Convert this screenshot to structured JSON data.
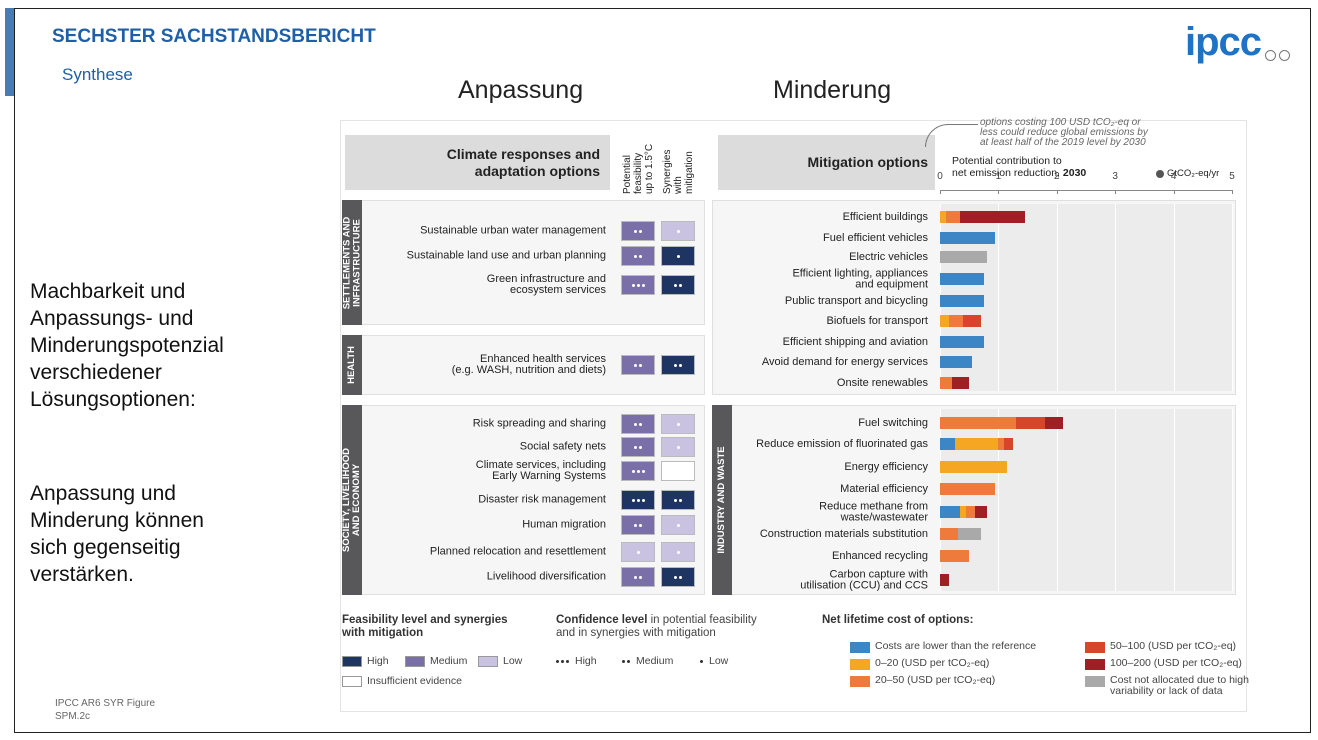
{
  "header": {
    "title": "SECHSTER SACHSTANDSBERICHT",
    "subtitle": "Synthese",
    "logo": "ipcc"
  },
  "headings": [
    "Anpassung",
    "Minderung"
  ],
  "side_text": [
    "Machbarkeit und\nAnpassungs- und\nMinderungspotenzial\nverschiedener\nLösungsoptionen:",
    "Anpassung und\nMinderung können\nsich gegenseitig\nverstärken."
  ],
  "source": "IPCC AR6 SYR Figure\nSPM.2c",
  "figure": {
    "adaptation": {
      "title": "Climate responses and\nadaptation options",
      "columns": [
        "Potential\nfeasibility\nup to 1.5°C",
        "Synergies\nwith\nmitigation"
      ],
      "sections": [
        {
          "name": "SETTLEMENTS AND\nINFRASTRUCTURE",
          "options": [
            {
              "label": "Sustainable urban water management",
              "feasibility": {
                "color": "#7b6fa8",
                "dots": 2
              },
              "synergy": {
                "color": "#c9c2e0",
                "dots": 1
              }
            },
            {
              "label": "Sustainable land use and urban planning",
              "feasibility": {
                "color": "#7b6fa8",
                "dots": 2
              },
              "synergy": {
                "color": "#1e3461",
                "dots": 1
              }
            },
            {
              "label": "Green infrastructure and\necosystem services",
              "feasibility": {
                "color": "#7b6fa8",
                "dots": 3
              },
              "synergy": {
                "color": "#1e3461",
                "dots": 2
              }
            }
          ]
        },
        {
          "name": "HEALTH",
          "options": [
            {
              "label": "Enhanced health services\n(e.g. WASH, nutrition and diets)",
              "feasibility": {
                "color": "#7b6fa8",
                "dots": 2
              },
              "synergy": {
                "color": "#1e3461",
                "dots": 2
              }
            }
          ]
        },
        {
          "name": "SOCIETY, LIVELIHOOD\nAND ECONOMY",
          "options": [
            {
              "label": "Risk spreading and sharing",
              "feasibility": {
                "color": "#7b6fa8",
                "dots": 2
              },
              "synergy": {
                "color": "#c9c2e0",
                "dots": 1
              }
            },
            {
              "label": "Social safety nets",
              "feasibility": {
                "color": "#7b6fa8",
                "dots": 2
              },
              "synergy": {
                "color": "#c9c2e0",
                "dots": 1
              }
            },
            {
              "label": "Climate services, including\nEarly Warning Systems",
              "feasibility": {
                "color": "#7b6fa8",
                "dots": 3
              },
              "synergy": {
                "color": "#ffffff",
                "dots": 0
              }
            },
            {
              "label": "Disaster risk management",
              "feasibility": {
                "color": "#1e3461",
                "dots": 3
              },
              "synergy": {
                "color": "#1e3461",
                "dots": 2
              }
            },
            {
              "label": "Human migration",
              "feasibility": {
                "color": "#7b6fa8",
                "dots": 2
              },
              "synergy": {
                "color": "#c9c2e0",
                "dots": 1
              }
            },
            {
              "label": "Planned relocation and resettlement",
              "feasibility": {
                "color": "#c9c2e0",
                "dots": 1
              },
              "synergy": {
                "color": "#c9c2e0",
                "dots": 1
              }
            },
            {
              "label": "Livelihood diversification",
              "feasibility": {
                "color": "#7b6fa8",
                "dots": 2
              },
              "synergy": {
                "color": "#1e3461",
                "dots": 2
              }
            }
          ]
        }
      ]
    },
    "mitigation": {
      "title": "Mitigation options",
      "note": "options costing 100 USD tCO₂-eq or\nless could reduce global emissions by\nat least half of the 2019 level by 2030",
      "axis_title": "Potential contribution to\nnet emission reduction, ",
      "axis_title_bold": "2030",
      "unit": "GtCO₂-eq/yr",
      "xlim": [
        0,
        5
      ],
      "xticks": [
        0,
        1,
        2,
        3,
        4,
        5
      ],
      "grid": true,
      "sectors": [
        {
          "options": [
            {
              "label": "Efficient buildings",
              "segments": [
                {
                  "color": "#f5a623",
                  "value": 0.1
                },
                {
                  "color": "#ee7a3c",
                  "value": 0.25
                },
                {
                  "color": "#a01f24",
                  "value": 1.1
                }
              ]
            },
            {
              "label": "Fuel efficient vehicles",
              "segments": [
                {
                  "color": "#3d86c6",
                  "value": 0.95
                }
              ]
            },
            {
              "label": "Electric vehicles",
              "segments": [
                {
                  "color": "#a9a9a9",
                  "value": 0.8
                }
              ]
            },
            {
              "label": "Efficient lighting, appliances\nand equipment",
              "segments": [
                {
                  "color": "#3d86c6",
                  "value": 0.75
                }
              ]
            },
            {
              "label": "Public transport and bicycling",
              "segments": [
                {
                  "color": "#3d86c6",
                  "value": 0.75
                }
              ]
            },
            {
              "label": "Biofuels for transport",
              "segments": [
                {
                  "color": "#f5a623",
                  "value": 0.15
                },
                {
                  "color": "#ee7a3c",
                  "value": 0.25
                },
                {
                  "color": "#d9442c",
                  "value": 0.3
                }
              ]
            },
            {
              "label": "Efficient shipping and aviation",
              "segments": [
                {
                  "color": "#3d86c6",
                  "value": 0.75
                }
              ]
            },
            {
              "label": "Avoid demand for energy services",
              "segments": [
                {
                  "color": "#3d86c6",
                  "value": 0.55
                }
              ]
            },
            {
              "label": "Onsite renewables",
              "segments": [
                {
                  "color": "#ee7a3c",
                  "value": 0.2
                },
                {
                  "color": "#a01f24",
                  "value": 0.3
                }
              ]
            }
          ]
        },
        {
          "name": "INDUSTRY AND WASTE",
          "options": [
            {
              "label": "Fuel switching",
              "segments": [
                {
                  "color": "#ee7a3c",
                  "value": 1.3
                },
                {
                  "color": "#d9442c",
                  "value": 0.5
                },
                {
                  "color": "#a01f24",
                  "value": 0.3
                }
              ]
            },
            {
              "label": "Reduce emission of fluorinated gas",
              "segments": [
                {
                  "color": "#3d86c6",
                  "value": 0.25
                },
                {
                  "color": "#f5a623",
                  "value": 0.75
                },
                {
                  "color": "#ee7a3c",
                  "value": 0.1
                },
                {
                  "color": "#d9442c",
                  "value": 0.15
                }
              ]
            },
            {
              "label": "Energy efficiency",
              "segments": [
                {
                  "color": "#f5a623",
                  "value": 1.15
                }
              ]
            },
            {
              "label": "Material efficiency",
              "segments": [
                {
                  "color": "#ee7a3c",
                  "value": 0.95
                }
              ]
            },
            {
              "label": "Reduce methane from\nwaste/wastewater",
              "segments": [
                {
                  "color": "#3d86c6",
                  "value": 0.35
                },
                {
                  "color": "#f5a623",
                  "value": 0.1
                },
                {
                  "color": "#ee7a3c",
                  "value": 0.15
                },
                {
                  "color": "#a01f24",
                  "value": 0.2
                }
              ]
            },
            {
              "label": "Construction materials substitution",
              "segments": [
                {
                  "color": "#ee7a3c",
                  "value": 0.3
                },
                {
                  "color": "#a9a9a9",
                  "value": 0.4
                }
              ]
            },
            {
              "label": "Enhanced recycling",
              "segments": [
                {
                  "color": "#ee7a3c",
                  "value": 0.5
                }
              ]
            },
            {
              "label": "Carbon capture with\nutilisation (CCU) and CCS",
              "segments": [
                {
                  "color": "#a01f24",
                  "value": 0.15
                }
              ]
            }
          ]
        }
      ]
    },
    "legend": {
      "feasibility": {
        "title": "Feasibility level and synergies\nwith mitigation",
        "items": [
          {
            "color": "#1e3461",
            "label": "High"
          },
          {
            "color": "#7b6fa8",
            "label": "Medium"
          },
          {
            "color": "#c9c2e0",
            "label": "Low"
          },
          {
            "color": "#ffffff",
            "label": "Insufficient evidence"
          }
        ]
      },
      "confidence": {
        "title_bold": "Confidence level",
        "title": " in potential feasibility\nand in synergies with mitigation",
        "items": [
          {
            "dots": 3,
            "label": "High"
          },
          {
            "dots": 2,
            "label": "Medium"
          },
          {
            "dots": 1,
            "label": "Low"
          }
        ]
      },
      "cost": {
        "title": "Net lifetime cost of options:",
        "items": [
          {
            "color": "#3d86c6",
            "label": "Costs are lower than the reference"
          },
          {
            "color": "#f5a623",
            "label": "0–20 (USD per tCO₂-eq)"
          },
          {
            "color": "#ee7a3c",
            "label": "20–50 (USD per tCO₂-eq)"
          },
          {
            "color": "#d9442c",
            "label": "50–100 (USD per tCO₂-eq)"
          },
          {
            "color": "#a01f24",
            "label": "100–200 (USD per tCO₂-eq)"
          },
          {
            "color": "#a9a9a9",
            "label": "Cost not allocated due to high\nvariability or lack of data"
          }
        ]
      }
    }
  }
}
